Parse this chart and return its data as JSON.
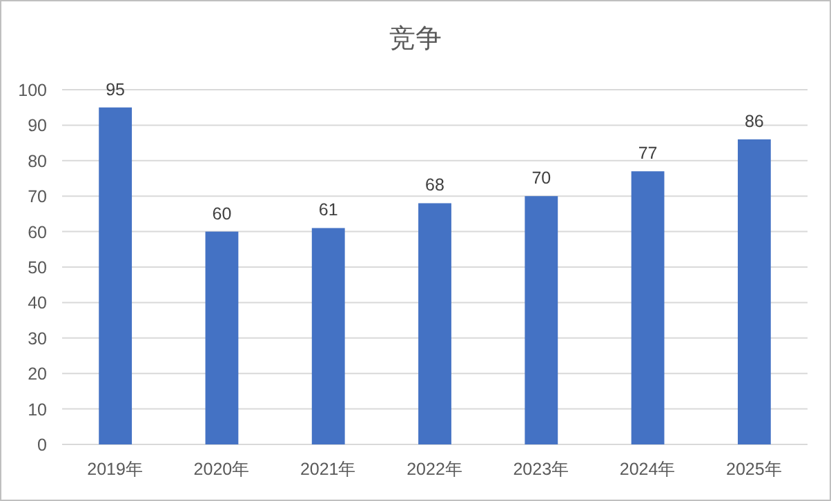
{
  "chart_data": {
    "type": "bar",
    "title": "竞争",
    "categories": [
      "2019年",
      "2020年",
      "2021年",
      "2022年",
      "2023年",
      "2024年",
      "2025年"
    ],
    "values": [
      95,
      60,
      61,
      68,
      70,
      77,
      86
    ],
    "color": "#4472c4",
    "ylim": [
      0,
      100
    ],
    "yticks": [
      0,
      10,
      20,
      30,
      40,
      50,
      60,
      70,
      80,
      90,
      100
    ],
    "grid": "y",
    "data_labels": true
  }
}
